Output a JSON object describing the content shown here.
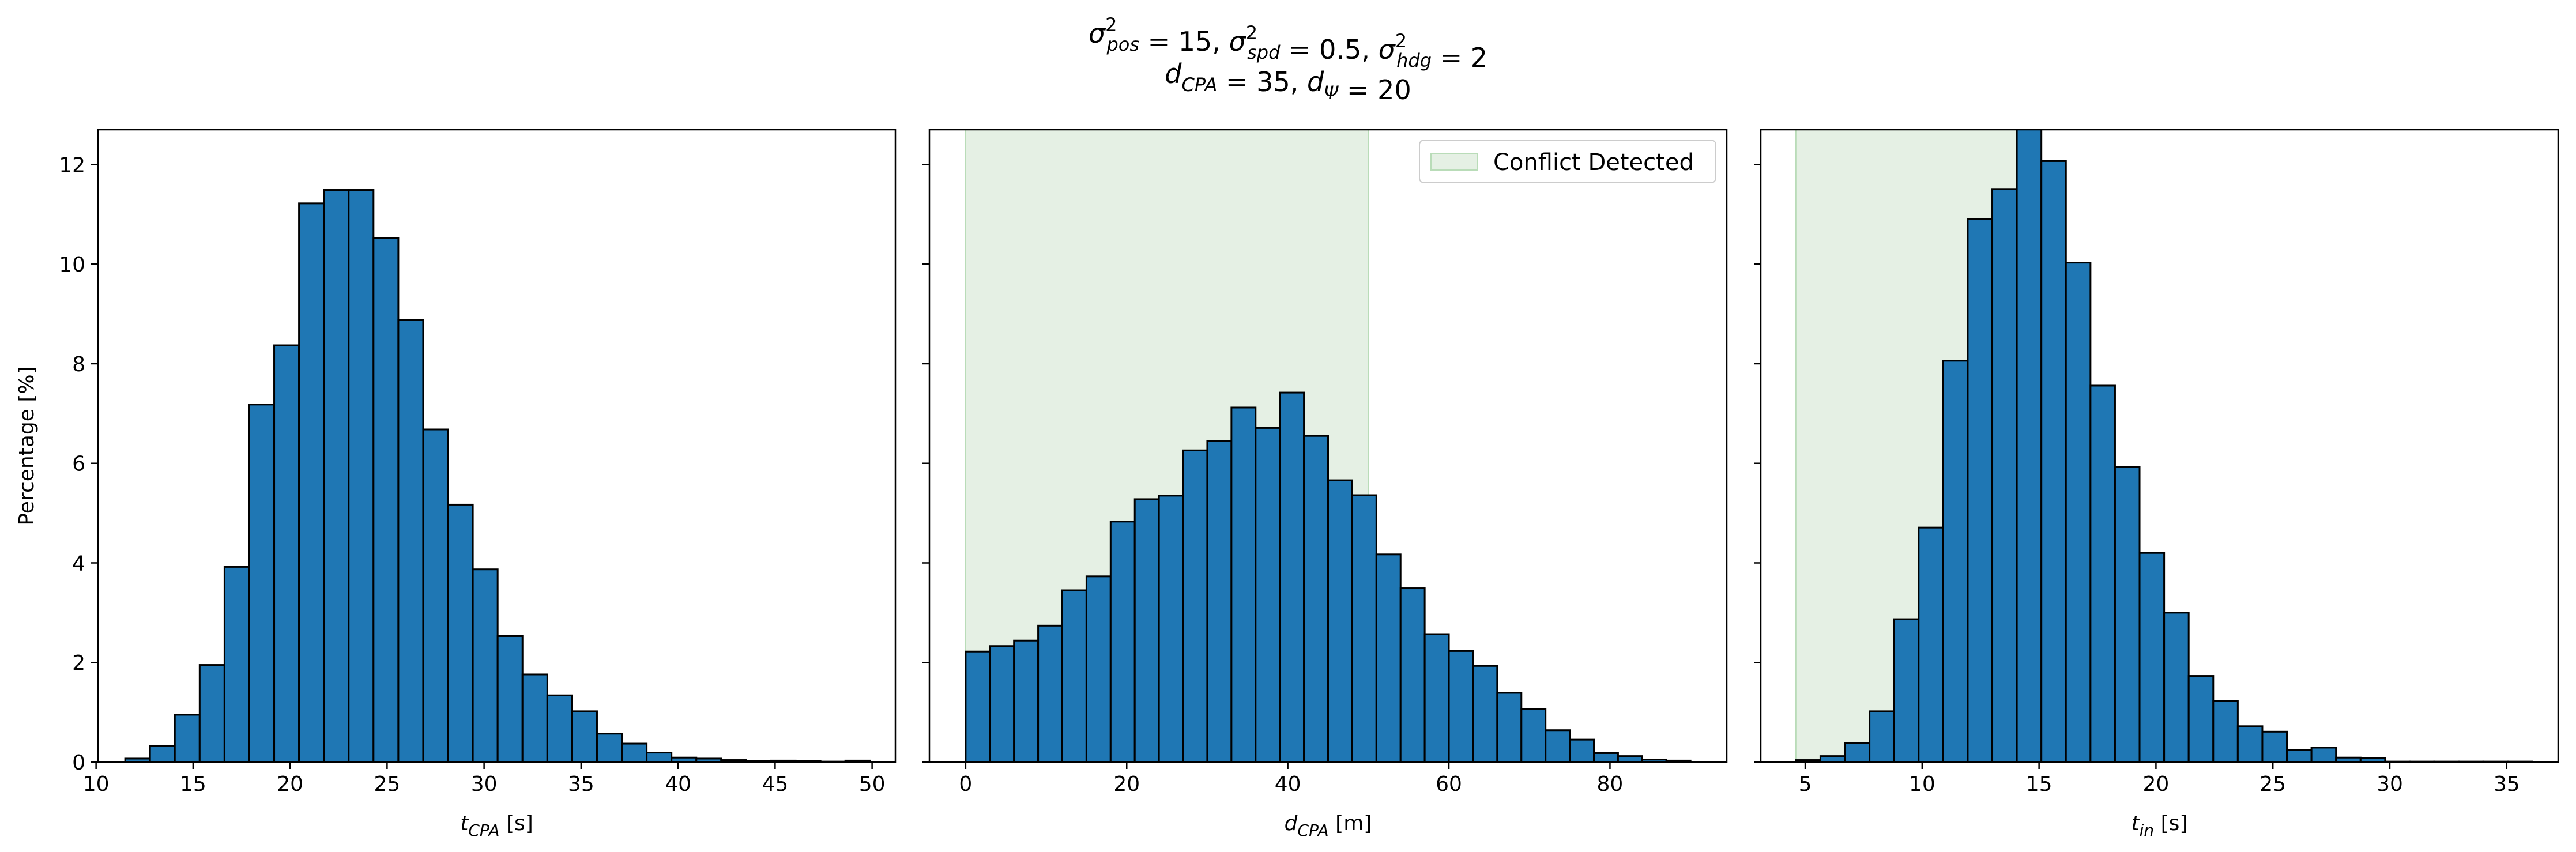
{
  "figure": {
    "title_line1": [
      {
        "t": "σ",
        "sup": "2",
        "sub": "pos"
      },
      {
        "t": " = 15, "
      },
      {
        "t": "σ",
        "sup": "2",
        "sub": "spd"
      },
      {
        "t": " = 0.5, "
      },
      {
        "t": "σ",
        "sup": "2",
        "sub": "hdg"
      },
      {
        "t": " = 2"
      }
    ],
    "title_line2": [
      {
        "t": "d",
        "sub": "CPA"
      },
      {
        "t": " = 35, "
      },
      {
        "t": "d",
        "sub": "Ψ"
      },
      {
        "t": " = 20"
      }
    ],
    "ylabel": "Percentage [%]",
    "colors": {
      "bar": "#1f77b4",
      "edge": "#000000",
      "shade": "#e5f0e4",
      "shade_edge": "#b9dcb8"
    }
  },
  "chart_data": [
    {
      "type": "bar",
      "id": "tcpa",
      "xlabel_main": "t",
      "xlabel_sub": "CPA",
      "xlabel_unit": " [s]",
      "xlim": [
        10.1,
        51.2
      ],
      "ylim": [
        0,
        12.7
      ],
      "xticks": [
        10,
        15,
        20,
        25,
        30,
        35,
        40,
        45,
        50
      ],
      "yticks": [
        0,
        2,
        4,
        6,
        8,
        10,
        12
      ],
      "bin_start": 11.5,
      "bin_width": 1.28,
      "values": [
        0.07,
        0.33,
        0.95,
        1.95,
        3.92,
        7.18,
        8.37,
        11.22,
        11.49,
        11.49,
        10.52,
        8.88,
        6.68,
        5.17,
        3.87,
        2.53,
        1.76,
        1.34,
        1.02,
        0.57,
        0.37,
        0.19,
        0.09,
        0.07,
        0.04,
        0.02,
        0.03,
        0.02,
        0.01,
        0.03
      ],
      "shade": null,
      "legend": null
    },
    {
      "type": "bar",
      "id": "dcpa",
      "xlabel_main": "d",
      "xlabel_sub": "CPA",
      "xlabel_unit": " [m]",
      "xlim": [
        -4.5,
        94.5
      ],
      "ylim": [
        0,
        12.7
      ],
      "xticks": [
        0,
        20,
        40,
        60,
        80
      ],
      "yticks": [
        0,
        2,
        4,
        6,
        8,
        10,
        12
      ],
      "bin_start": 0,
      "bin_width": 3.0,
      "values": [
        2.22,
        2.33,
        2.44,
        2.74,
        3.45,
        3.73,
        4.83,
        5.28,
        5.35,
        6.26,
        6.45,
        7.12,
        6.71,
        7.42,
        6.55,
        5.66,
        5.36,
        4.17,
        3.49,
        2.57,
        2.23,
        1.93,
        1.39,
        1.07,
        0.64,
        0.45,
        0.18,
        0.12,
        0.05,
        0.03
      ],
      "shade": [
        0,
        50
      ],
      "legend": "Conflict Detected"
    },
    {
      "type": "bar",
      "id": "tin",
      "xlabel_main": "t",
      "xlabel_sub": "in",
      "xlabel_unit": " [s]",
      "xlim": [
        3.1,
        37.2
      ],
      "ylim": [
        0,
        12.7
      ],
      "xticks": [
        5,
        10,
        15,
        20,
        25,
        30,
        35
      ],
      "yticks": [
        0,
        2,
        4,
        6,
        8,
        10,
        12
      ],
      "bin_start": 4.6,
      "bin_width": 1.05,
      "values": [
        0.04,
        0.12,
        0.38,
        1.02,
        2.87,
        4.71,
        8.06,
        10.91,
        11.51,
        12.72,
        12.07,
        10.03,
        7.56,
        5.93,
        4.2,
        3.0,
        1.73,
        1.23,
        0.72,
        0.61,
        0.24,
        0.29,
        0.09,
        0.08,
        0.01,
        0.01,
        0.01,
        0.01,
        0.01,
        0.01
      ],
      "shade": [
        4.6,
        14.6
      ],
      "legend": null
    }
  ]
}
